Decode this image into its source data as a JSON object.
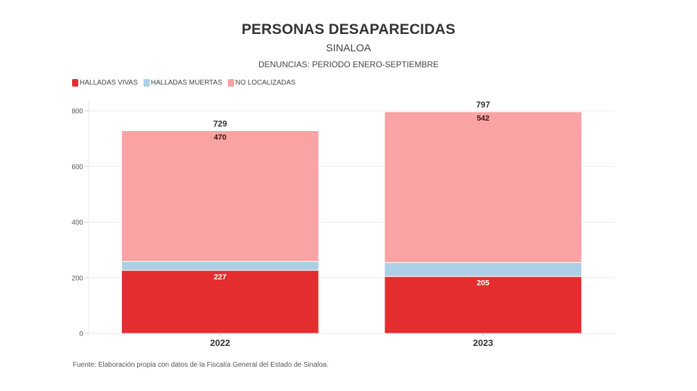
{
  "header": {
    "title": "PERSONAS DESAPARECIDAS",
    "subtitle": "SINALOA",
    "description": "DENUNCIAS: PERIODO ENERO-SEPTIEMBRE"
  },
  "legend": [
    {
      "label": "HALLADAS VIVAS",
      "color": "#e32d2f"
    },
    {
      "label": "HALLADAS MUERTAS",
      "color": "#abd0e6"
    },
    {
      "label": "NO LOCALIZADAS",
      "color": "#f9a3a4"
    }
  ],
  "source": "Fuente: Elaboración propia con datos de la Fiscalía General del Estado de Sinaloa.",
  "chart_data": {
    "type": "bar",
    "stacked": true,
    "title": "PERSONAS DESAPARECIDAS",
    "subtitle": "SINALOA",
    "description": "DENUNCIAS: PERIODO ENERO-SEPTIEMBRE",
    "categories": [
      "2022",
      "2023"
    ],
    "series": [
      {
        "name": "HALLADAS VIVAS",
        "values": [
          227,
          205
        ],
        "color": "#e32d2f",
        "labels": [
          "227",
          "205"
        ],
        "label_color": "#ffffff"
      },
      {
        "name": "HALLADAS MUERTAS",
        "values": [
          32,
          50
        ],
        "color": "#abd0e6",
        "labels": null
      },
      {
        "name": "NO LOCALIZADAS",
        "values": [
          470,
          542
        ],
        "color": "#f9a3a4",
        "labels": [
          "470",
          "542"
        ],
        "label_color": "#3a1010"
      }
    ],
    "totals": [
      729,
      797
    ],
    "total_labels": [
      "729",
      "797"
    ],
    "xlabel": "",
    "ylabel": "",
    "ylim": [
      0,
      800
    ],
    "yticks": [
      0,
      200,
      400,
      600,
      800
    ],
    "ytick_labels": [
      "0",
      "200",
      "400",
      "600",
      "800"
    ],
    "grid": true,
    "legend_position": "top-left"
  }
}
